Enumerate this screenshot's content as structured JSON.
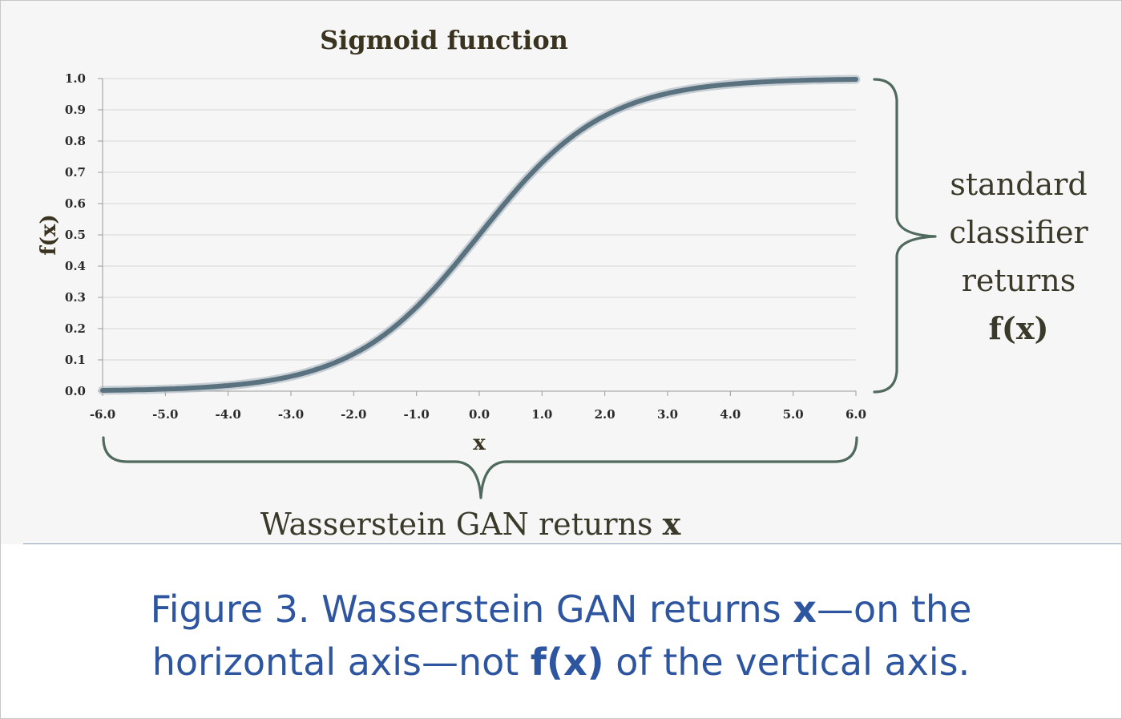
{
  "chart_data": {
    "type": "line",
    "title": "Sigmoid function",
    "xlabel": "x",
    "ylabel": "f(x)",
    "xlim": [
      -6.0,
      6.0
    ],
    "ylim": [
      0.0,
      1.0
    ],
    "x_ticks": [
      "-6.0",
      "-5.0",
      "-4.0",
      "-3.0",
      "-2.0",
      "-1.0",
      "0.0",
      "1.0",
      "2.0",
      "3.0",
      "4.0",
      "5.0",
      "6.0"
    ],
    "y_ticks": [
      "0.0",
      "0.1",
      "0.2",
      "0.3",
      "0.4",
      "0.5",
      "0.6",
      "0.7",
      "0.8",
      "0.9",
      "1.0"
    ],
    "grid": "horizontal",
    "series": [
      {
        "x": [
          -6,
          -5,
          -4,
          -3,
          -2,
          -1,
          0,
          1,
          2,
          3,
          4,
          5,
          6
        ],
        "y": [
          0.002,
          0.007,
          0.018,
          0.047,
          0.119,
          0.269,
          0.5,
          0.731,
          0.881,
          0.953,
          0.982,
          0.993,
          0.998
        ]
      }
    ],
    "colors": {
      "line": "#5a7280",
      "grid": "#d6d6d6",
      "brace": "#506a5e"
    }
  },
  "annotations": {
    "right": {
      "lines": [
        "standard",
        "classifier",
        "returns"
      ],
      "bold": "f(x)"
    },
    "bottom": {
      "text": "Wasserstein GAN returns ",
      "bold": "x"
    }
  },
  "caption": {
    "part1": "Figure 3. Wasserstein GAN returns ",
    "bold1": "x",
    "part2": "—on the",
    "part3": "horizontal axis—not ",
    "bold2": "f(x)",
    "part4": " of the vertical axis.",
    "color": "#2e55a0"
  }
}
